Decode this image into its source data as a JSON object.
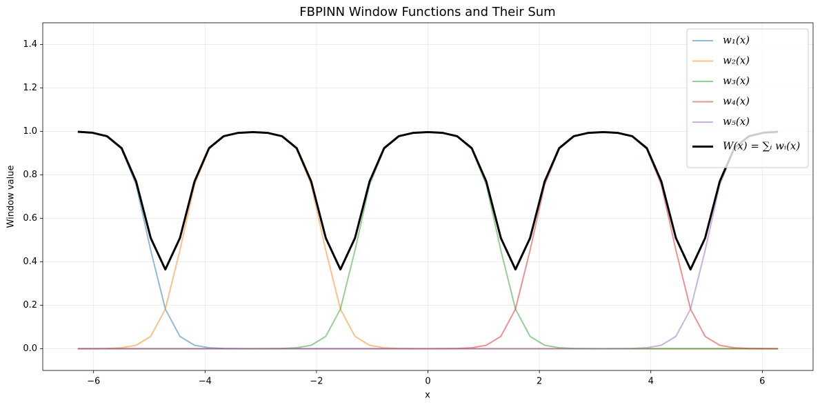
{
  "chart_data": {
    "type": "line",
    "title": "FBPINN Window Functions and Their Sum",
    "x_label": "x",
    "y_label": "Window value",
    "xlim": [
      -6.912,
      6.912
    ],
    "ylim": [
      -0.1,
      1.5
    ],
    "xticks": [
      {
        "value": -6,
        "label": "−6"
      },
      {
        "value": -4,
        "label": "−4"
      },
      {
        "value": -2,
        "label": "−2"
      },
      0,
      2,
      4,
      6
    ],
    "yticks": [
      {
        "value": 0,
        "label": "0.0"
      },
      {
        "value": 0.2,
        "label": "0.2"
      },
      {
        "value": 0.4,
        "label": "0.4"
      },
      {
        "value": 0.6,
        "label": "0.6"
      },
      {
        "value": 0.8,
        "label": "0.8"
      },
      {
        "value": 1,
        "label": "1.0"
      },
      {
        "value": 1.2,
        "label": "1.2"
      },
      {
        "value": 1.4,
        "label": "1.4"
      }
    ],
    "grid": true,
    "legend": "upper right",
    "x": [
      -6.2832,
      -6.0214,
      -5.7596,
      -5.4978,
      -5.236,
      -4.9742,
      -4.7124,
      -4.4506,
      -4.1888,
      -3.927,
      -3.6652,
      -3.4034,
      -3.1416,
      -2.8798,
      -2.618,
      -2.3562,
      -2.0944,
      -1.8326,
      -1.5708,
      -1.309,
      -1.0472,
      -0.7854,
      -0.5236,
      -0.2618,
      0,
      0.2618,
      0.5236,
      0.7854,
      1.0472,
      1.309,
      1.5708,
      1.8326,
      2.0944,
      2.3562,
      2.618,
      2.8798,
      3.1416,
      3.4034,
      3.6652,
      3.927,
      4.1888,
      4.4506,
      4.7124,
      4.9742,
      5.236,
      5.4978,
      5.7596,
      6.0214,
      6.2832
    ],
    "series": [
      {
        "name": "w₁(x)",
        "color": "#1f77b4",
        "opacity": 0.5,
        "width": 2,
        "values": [
          0.9983,
          0.9936,
          0.9767,
          0.9189,
          0.7536,
          0.4524,
          0.1824,
          0.0568,
          0.016,
          0.0044,
          0.0012,
          0.0003,
          0.0001,
          0,
          0,
          0,
          0,
          0,
          0,
          0,
          0,
          0,
          0,
          0,
          0,
          0,
          0,
          0,
          0,
          0,
          0,
          0,
          0,
          0,
          0,
          0,
          0,
          0,
          0,
          0,
          0,
          0,
          0,
          0,
          0,
          0,
          0,
          0,
          0
        ]
      },
      {
        "name": "w₂(x)",
        "color": "#ff7f0e",
        "opacity": 0.5,
        "width": 2,
        "values": [
          0.0001,
          0.0003,
          0.0012,
          0.0044,
          0.016,
          0.0568,
          0.1824,
          0.4524,
          0.7536,
          0.9189,
          0.9767,
          0.9931,
          0.9966,
          0.9931,
          0.9767,
          0.9189,
          0.7536,
          0.4524,
          0.1824,
          0.0568,
          0.016,
          0.0044,
          0.0012,
          0.0003,
          0.0001,
          0,
          0,
          0,
          0,
          0,
          0,
          0,
          0,
          0,
          0,
          0,
          0,
          0,
          0,
          0,
          0,
          0,
          0,
          0,
          0,
          0,
          0,
          0,
          0
        ]
      },
      {
        "name": "w₃(x)",
        "color": "#2ca02c",
        "opacity": 0.5,
        "width": 2,
        "values": [
          0,
          0,
          0,
          0,
          0,
          0,
          0,
          0,
          0,
          0,
          0,
          0,
          0.0001,
          0.0003,
          0.0012,
          0.0044,
          0.016,
          0.0568,
          0.1824,
          0.4524,
          0.7536,
          0.9189,
          0.9767,
          0.9931,
          0.9966,
          0.9931,
          0.9767,
          0.9189,
          0.7536,
          0.4524,
          0.1824,
          0.0568,
          0.016,
          0.0044,
          0.0012,
          0.0003,
          0.0001,
          0,
          0,
          0,
          0,
          0,
          0,
          0,
          0,
          0,
          0,
          0,
          0
        ]
      },
      {
        "name": "w₄(x)",
        "color": "#d62728",
        "opacity": 0.5,
        "width": 2,
        "values": [
          0,
          0,
          0,
          0,
          0,
          0,
          0,
          0,
          0,
          0,
          0,
          0,
          0,
          0,
          0,
          0,
          0,
          0,
          0,
          0,
          0,
          0,
          0,
          0,
          0.0001,
          0.0003,
          0.0012,
          0.0044,
          0.016,
          0.0568,
          0.1824,
          0.4524,
          0.7536,
          0.9189,
          0.9767,
          0.9931,
          0.9966,
          0.9931,
          0.9767,
          0.9189,
          0.7536,
          0.4524,
          0.1824,
          0.0568,
          0.016,
          0.0044,
          0.0012,
          0.0003,
          0.0001
        ]
      },
      {
        "name": "w₅(x)",
        "color": "#9467bd",
        "opacity": 0.5,
        "width": 2,
        "values": [
          0,
          0,
          0,
          0,
          0,
          0,
          0,
          0,
          0,
          0,
          0,
          0,
          0,
          0,
          0,
          0,
          0,
          0,
          0,
          0,
          0,
          0,
          0,
          0,
          0,
          0,
          0,
          0,
          0,
          0,
          0,
          0,
          0,
          0,
          0,
          0,
          0.0001,
          0.0003,
          0.0012,
          0.0044,
          0.016,
          0.0568,
          0.1824,
          0.4524,
          0.7536,
          0.9189,
          0.9767,
          0.9936,
          0.9983
        ]
      },
      {
        "name": "W(x) = ∑ᵢ wᵢ(x)",
        "color": "#000000",
        "opacity": 1,
        "width": 3,
        "values": [
          0.9984,
          0.9939,
          0.9779,
          0.9233,
          0.7696,
          0.5092,
          0.3648,
          0.5092,
          0.7696,
          0.9233,
          0.9779,
          0.9934,
          0.9968,
          0.9934,
          0.9779,
          0.9233,
          0.7696,
          0.5092,
          0.3648,
          0.5092,
          0.7696,
          0.9233,
          0.9779,
          0.9934,
          0.9968,
          0.9934,
          0.9779,
          0.9233,
          0.7696,
          0.5092,
          0.3648,
          0.5092,
          0.7696,
          0.9233,
          0.9779,
          0.9934,
          0.9968,
          0.9934,
          0.9779,
          0.9233,
          0.7696,
          0.5092,
          0.3648,
          0.5092,
          0.7696,
          0.9233,
          0.9779,
          0.9939,
          0.9984
        ]
      }
    ]
  }
}
